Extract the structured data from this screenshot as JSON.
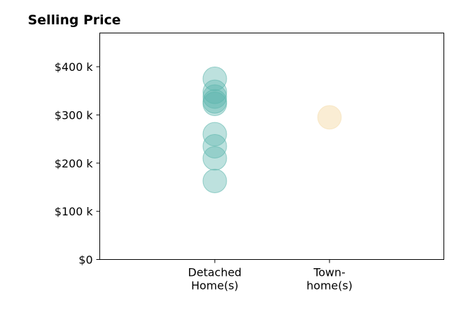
{
  "chart_data": {
    "type": "scatter",
    "title": "Selling Price",
    "xlabel": "",
    "ylabel": "",
    "categories": [
      "Detached\nHome(s)",
      "Town-\nhome(s)"
    ],
    "ylim": [
      0,
      470000
    ],
    "yticks": [
      {
        "value": 0,
        "label": "$0"
      },
      {
        "value": 100000,
        "label": "$100 k"
      },
      {
        "value": 200000,
        "label": "$200 k"
      },
      {
        "value": 300000,
        "label": "$300 k"
      },
      {
        "value": 400000,
        "label": "$400 k"
      }
    ],
    "grid": false,
    "series": [
      {
        "category_index": 0,
        "color": "#5bb5ac",
        "values": [
          375000,
          348000,
          338000,
          328000,
          323000,
          260000,
          235000,
          210000,
          163000
        ]
      },
      {
        "category_index": 1,
        "color": "#f5deb0",
        "values": [
          295000
        ]
      }
    ]
  }
}
